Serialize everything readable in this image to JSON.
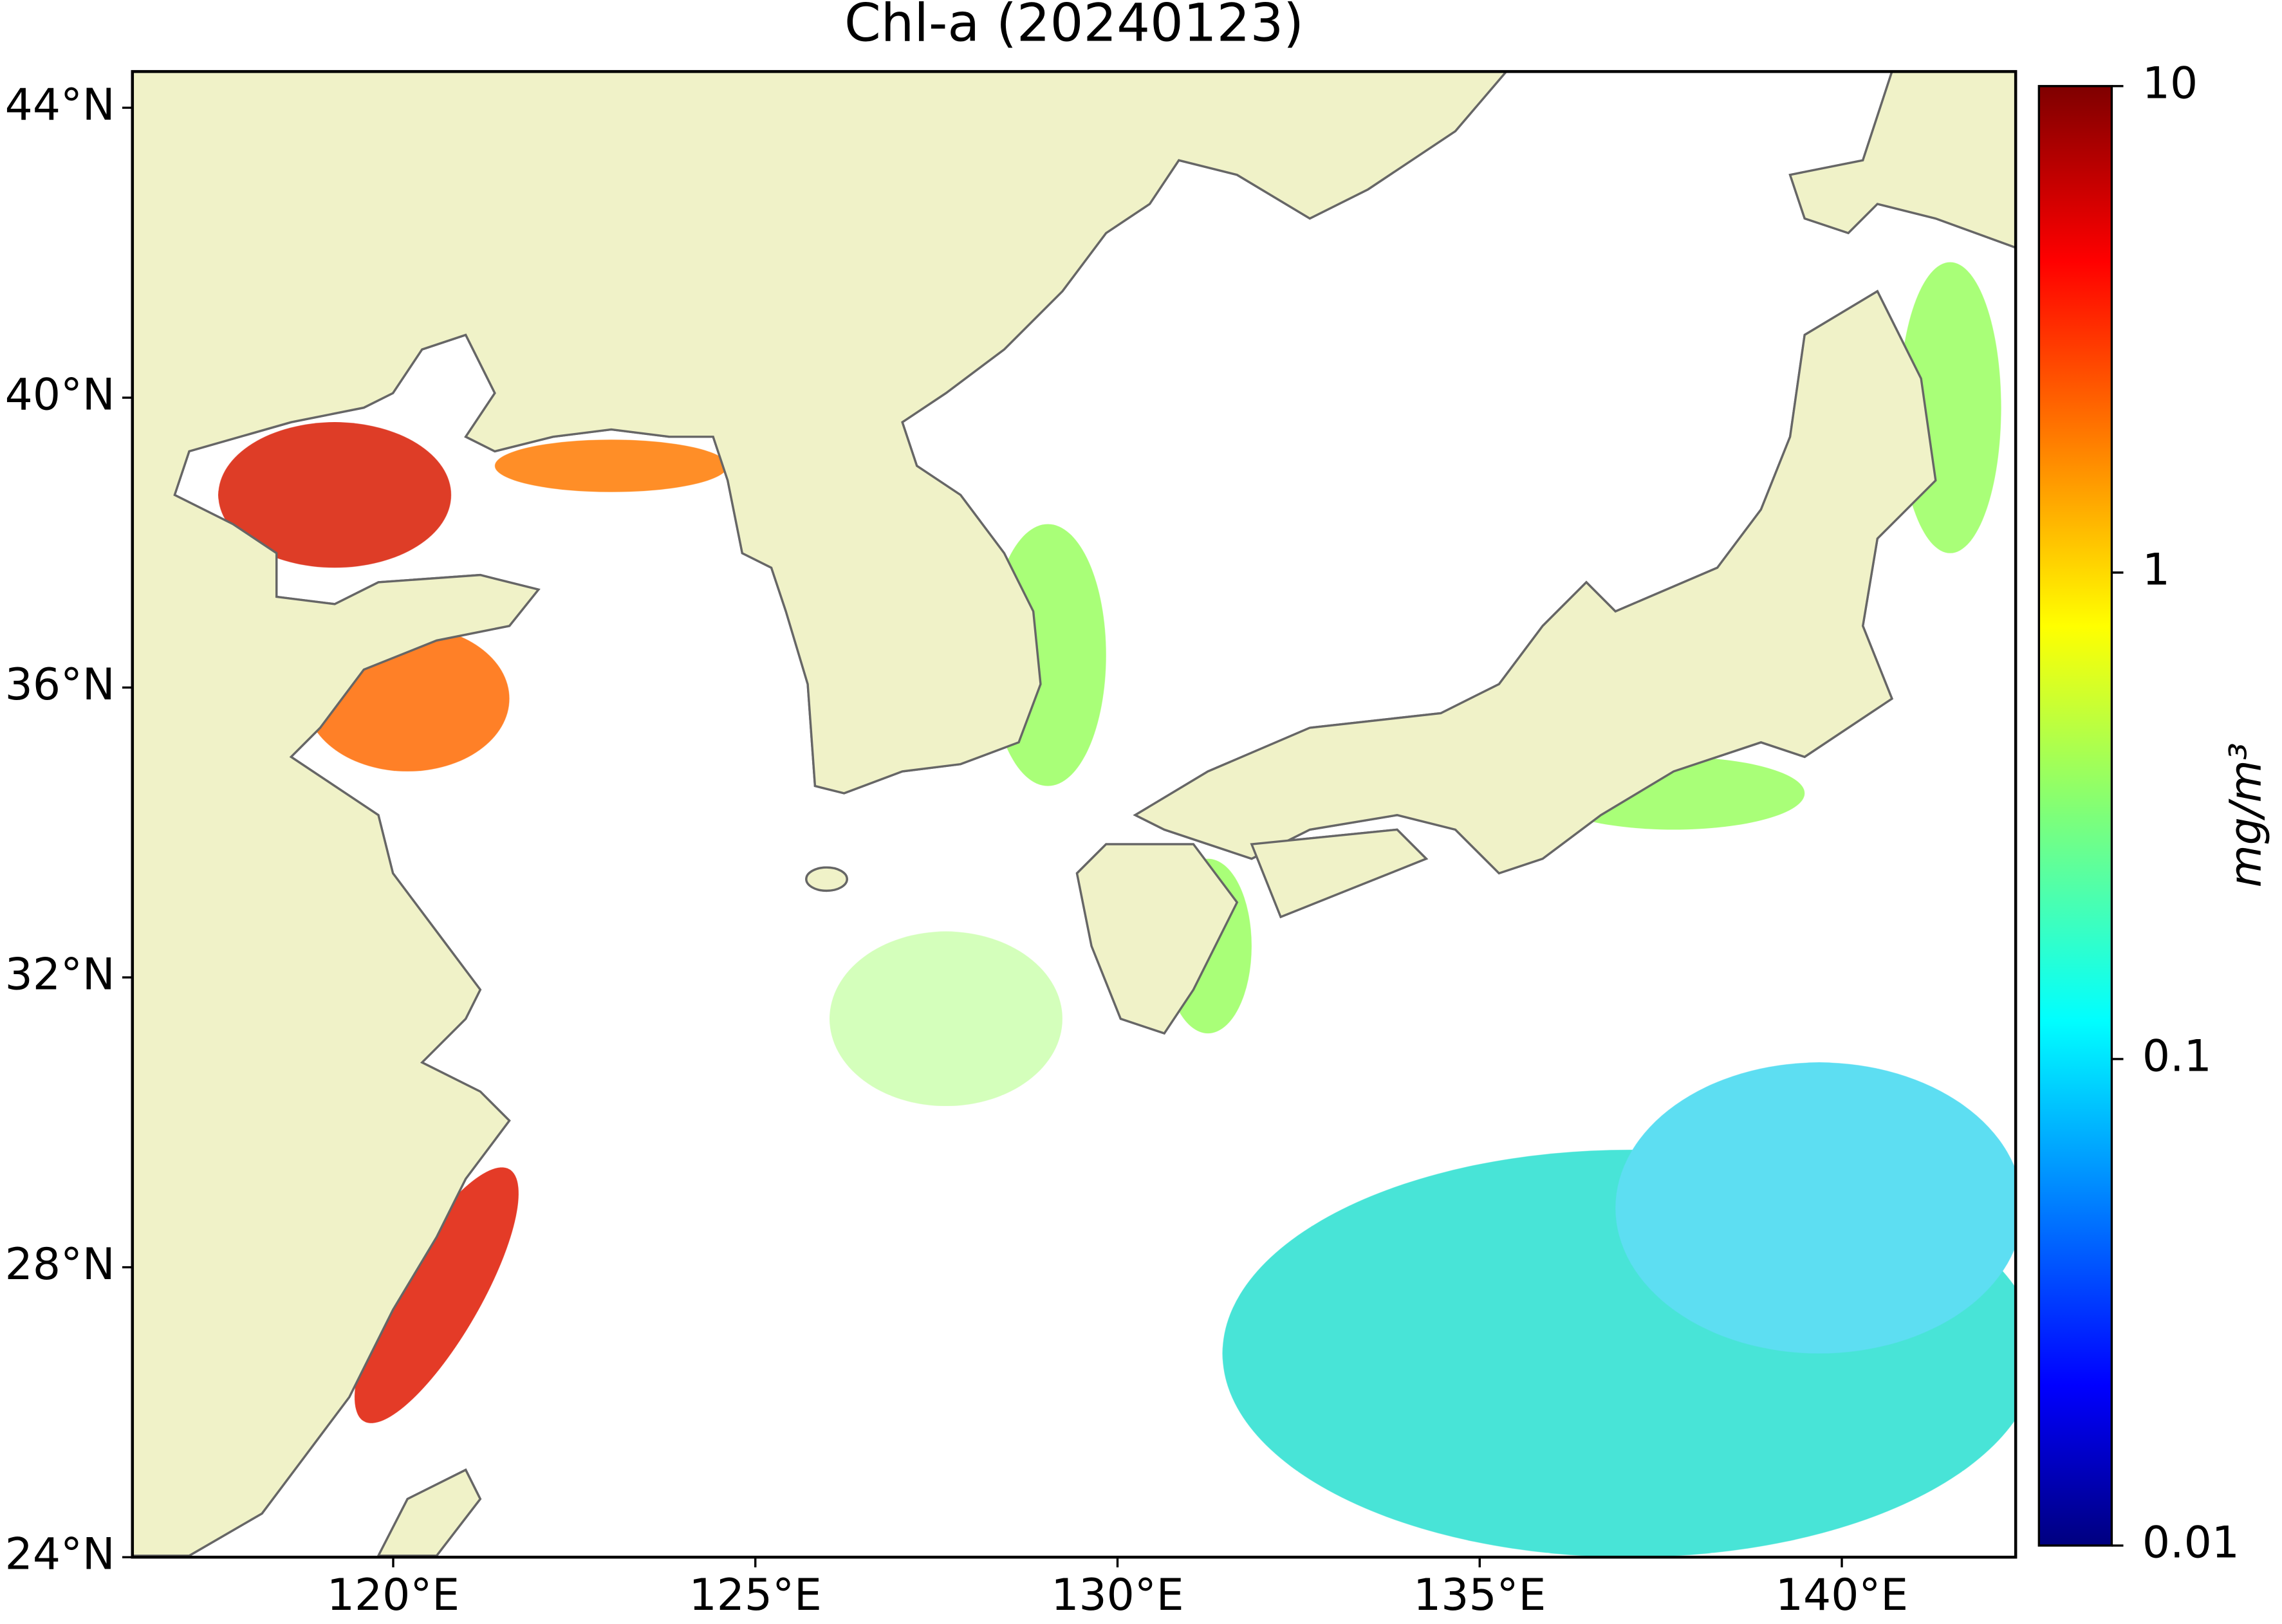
{
  "chart_data": {
    "type": "map",
    "title": "Chl-a (20240123)",
    "xlim": [
      116.4,
      142.4
    ],
    "ylim": [
      24,
      44.5
    ],
    "xticks": [
      {
        "value": 120,
        "label": "120°E"
      },
      {
        "value": 125,
        "label": "125°E"
      },
      {
        "value": 130,
        "label": "130°E"
      },
      {
        "value": 135,
        "label": "135°E"
      },
      {
        "value": 140,
        "label": "140°E"
      }
    ],
    "yticks": [
      {
        "value": 24,
        "label": "24°N"
      },
      {
        "value": 28,
        "label": "28°N"
      },
      {
        "value": 32,
        "label": "32°N"
      },
      {
        "value": 36,
        "label": "36°N"
      },
      {
        "value": 40,
        "label": "40°N"
      },
      {
        "value": 44,
        "label": "44°N"
      }
    ],
    "colorbar": {
      "label": "mg/m³",
      "lim": [
        0.01,
        10
      ],
      "log": true,
      "colormap": "jet",
      "ticks": [
        10,
        1,
        0.1,
        0.01
      ]
    },
    "land_color": "#f0f2c8"
  }
}
